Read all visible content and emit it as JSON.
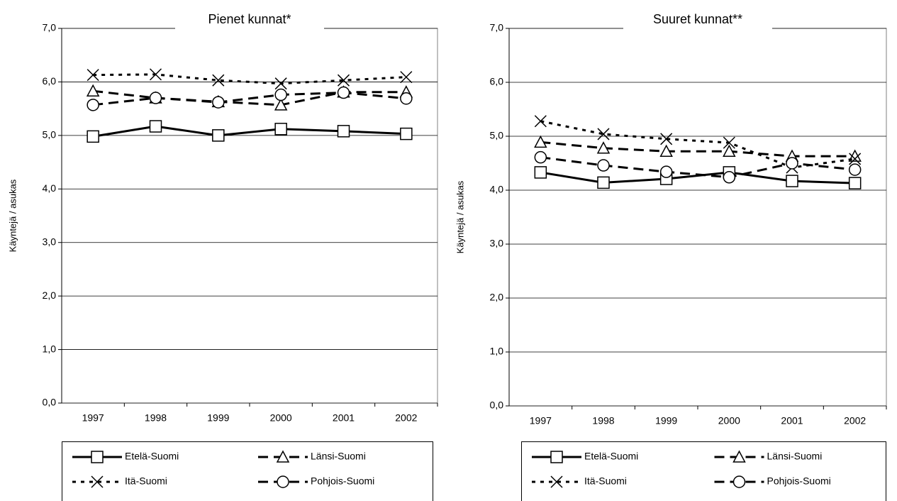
{
  "chart_data": [
    {
      "type": "line",
      "title": "Pienet kunnat*",
      "y_label": "Käyntejä / asukas",
      "categories": [
        "1997",
        "1998",
        "1999",
        "2000",
        "2001",
        "2002"
      ],
      "ylim": [
        0,
        7
      ],
      "grid": true,
      "yticks": [
        {
          "value": 0,
          "label": "0,0"
        },
        {
          "value": 1,
          "label": "1,0"
        },
        {
          "value": 2,
          "label": "2,0"
        },
        {
          "value": 3,
          "label": "3,0"
        },
        {
          "value": 4,
          "label": "4,0"
        },
        {
          "value": 5,
          "label": "5,0"
        },
        {
          "value": 6,
          "label": "6,0"
        },
        {
          "value": 7,
          "label": "7,0"
        }
      ],
      "series": [
        {
          "name": "Etelä-Suomi",
          "color": "#000000",
          "line_style": "solid",
          "marker": "square",
          "values": [
            4.98,
            5.17,
            5.0,
            5.12,
            5.08,
            5.03
          ]
        },
        {
          "name": "Länsi-Suomi",
          "color": "#000000",
          "line_style": "dashed",
          "marker": "triangle",
          "values": [
            5.83,
            5.7,
            5.63,
            5.57,
            5.81,
            5.81
          ]
        },
        {
          "name": "Itä-Suomi",
          "color": "#000000",
          "line_style": "dotted",
          "marker": "x",
          "values": [
            6.13,
            6.14,
            6.03,
            5.97,
            6.03,
            6.09
          ]
        },
        {
          "name": "Pohjois-Suomi",
          "color": "#000000",
          "line_style": "dashed",
          "marker": "circle",
          "values": [
            5.57,
            5.7,
            5.62,
            5.76,
            5.8,
            5.69
          ]
        }
      ]
    },
    {
      "type": "line",
      "title": "Suuret kunnat**",
      "y_label": "Käyntejä / asukas",
      "categories": [
        "1997",
        "1998",
        "1999",
        "2000",
        "2001",
        "2002"
      ],
      "ylim": [
        0,
        7
      ],
      "grid": true,
      "yticks": [
        {
          "value": 0,
          "label": "0,0"
        },
        {
          "value": 1,
          "label": "1,0"
        },
        {
          "value": 2,
          "label": "2,0"
        },
        {
          "value": 3,
          "label": "3,0"
        },
        {
          "value": 4,
          "label": "4,0"
        },
        {
          "value": 5,
          "label": "5,0"
        },
        {
          "value": 6,
          "label": "6,0"
        },
        {
          "value": 7,
          "label": "7,0"
        }
      ],
      "series": [
        {
          "name": "Etelä-Suomi",
          "color": "#000000",
          "line_style": "solid",
          "marker": "square",
          "values": [
            4.33,
            4.14,
            4.21,
            4.33,
            4.17,
            4.13
          ]
        },
        {
          "name": "Länsi-Suomi",
          "color": "#000000",
          "line_style": "dashed",
          "marker": "triangle",
          "values": [
            4.89,
            4.78,
            4.72,
            4.72,
            4.63,
            4.63
          ]
        },
        {
          "name": "Itä-Suomi",
          "color": "#000000",
          "line_style": "dotted",
          "marker": "x",
          "values": [
            5.28,
            5.04,
            4.95,
            4.88,
            4.42,
            4.58
          ]
        },
        {
          "name": "Pohjois-Suomi",
          "color": "#000000",
          "line_style": "dashed",
          "marker": "circle",
          "values": [
            4.61,
            4.46,
            4.34,
            4.24,
            4.5,
            4.38
          ]
        }
      ]
    }
  ]
}
